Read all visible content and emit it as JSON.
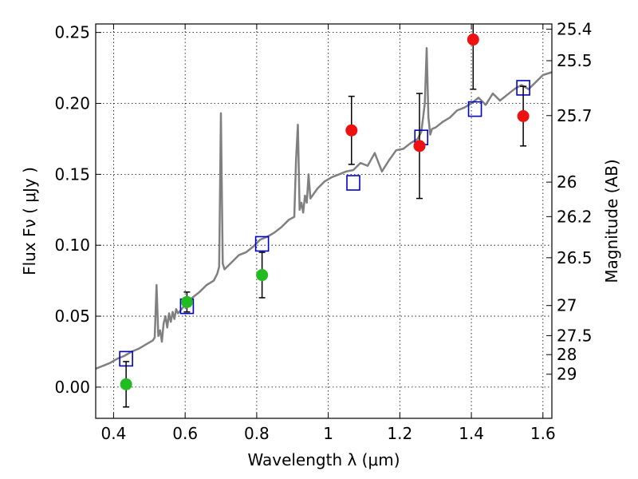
{
  "chart_data": {
    "type": "line",
    "xlabel": "Wavelength  λ (μm)",
    "ylabel": "Flux  Fν  ( μJy )",
    "ylabel_right": "Magnitude (AB)",
    "xlim": [
      0.35,
      1.625
    ],
    "ylim": [
      -0.022,
      0.256
    ],
    "grid": true,
    "x_ticks": [
      {
        "value": 0.4,
        "label": "0.4"
      },
      {
        "value": 0.6,
        "label": "0.6"
      },
      {
        "value": 0.8,
        "label": "0.8"
      },
      {
        "value": 1.0,
        "label": "1"
      },
      {
        "value": 1.2,
        "label": "1.2"
      },
      {
        "value": 1.4,
        "label": "1.4"
      },
      {
        "value": 1.6,
        "label": "1.6"
      }
    ],
    "y_ticks": [
      {
        "value": 0.0,
        "label": "0.00"
      },
      {
        "value": 0.05,
        "label": "0.05"
      },
      {
        "value": 0.1,
        "label": "0.10"
      },
      {
        "value": 0.15,
        "label": "0.15"
      },
      {
        "value": 0.2,
        "label": "0.20"
      },
      {
        "value": 0.25,
        "label": "0.25"
      }
    ],
    "right_ticks": [
      {
        "flux": 0.2523,
        "label": "25.4"
      },
      {
        "flux": 0.2301,
        "label": "25.5"
      },
      {
        "flux": 0.1914,
        "label": "25.7"
      },
      {
        "flux": 0.1445,
        "label": "26"
      },
      {
        "flux": 0.1202,
        "label": "26.2"
      },
      {
        "flux": 0.0912,
        "label": "26.5"
      },
      {
        "flux": 0.0575,
        "label": "27"
      },
      {
        "flux": 0.0363,
        "label": "27.5"
      },
      {
        "flux": 0.0229,
        "label": "28"
      },
      {
        "flux": 0.0091,
        "label": "29"
      }
    ],
    "colors": {
      "spectrum": "#808080",
      "model_squares": "#0000cc",
      "green_points": "#22bb22",
      "red_points": "#ee1111",
      "errorbars": "#000000"
    },
    "series": [
      {
        "type": "line",
        "x": [
          0.35,
          0.37,
          0.39,
          0.41,
          0.43,
          0.45,
          0.47,
          0.49,
          0.51,
          0.515,
          0.52,
          0.525,
          0.53,
          0.535,
          0.54,
          0.545,
          0.55,
          0.555,
          0.56,
          0.565,
          0.57,
          0.575,
          0.58,
          0.59,
          0.6,
          0.62,
          0.64,
          0.66,
          0.68,
          0.69,
          0.695,
          0.7,
          0.705,
          0.71,
          0.73,
          0.75,
          0.77,
          0.79,
          0.81,
          0.83,
          0.85,
          0.87,
          0.89,
          0.905,
          0.91,
          0.915,
          0.92,
          0.925,
          0.93,
          0.935,
          0.94,
          0.945,
          0.95,
          0.97,
          0.99,
          1.01,
          1.03,
          1.05,
          1.07,
          1.09,
          1.11,
          1.13,
          1.15,
          1.17,
          1.19,
          1.21,
          1.23,
          1.25,
          1.26,
          1.27,
          1.275,
          1.28,
          1.285,
          1.29,
          1.3,
          1.32,
          1.34,
          1.36,
          1.38,
          1.4,
          1.42,
          1.44,
          1.46,
          1.48,
          1.5,
          1.52,
          1.54,
          1.56,
          1.58,
          1.6,
          1.625
        ],
        "y": [
          0.013,
          0.015,
          0.017,
          0.02,
          0.022,
          0.025,
          0.027,
          0.03,
          0.033,
          0.035,
          0.072,
          0.036,
          0.04,
          0.032,
          0.045,
          0.05,
          0.042,
          0.052,
          0.046,
          0.053,
          0.048,
          0.055,
          0.052,
          0.055,
          0.058,
          0.063,
          0.067,
          0.072,
          0.075,
          0.08,
          0.085,
          0.193,
          0.087,
          0.083,
          0.088,
          0.093,
          0.095,
          0.099,
          0.104,
          0.106,
          0.109,
          0.113,
          0.118,
          0.12,
          0.16,
          0.185,
          0.125,
          0.13,
          0.123,
          0.135,
          0.13,
          0.15,
          0.133,
          0.14,
          0.145,
          0.148,
          0.15,
          0.152,
          0.153,
          0.158,
          0.156,
          0.165,
          0.152,
          0.16,
          0.167,
          0.168,
          0.172,
          0.175,
          0.18,
          0.2,
          0.239,
          0.19,
          0.178,
          0.182,
          0.183,
          0.187,
          0.19,
          0.195,
          0.197,
          0.2,
          0.204,
          0.199,
          0.207,
          0.202,
          0.206,
          0.21,
          0.213,
          0.21,
          0.215,
          0.22,
          0.222
        ]
      },
      {
        "type": "scatter",
        "marker": "open-square",
        "x": [
          0.435,
          0.605,
          0.815,
          1.07,
          1.26,
          1.41,
          1.545
        ],
        "y": [
          0.02,
          0.057,
          0.101,
          0.144,
          0.176,
          0.196,
          0.211
        ]
      },
      {
        "type": "scatter",
        "marker": "filled-circle",
        "x": [
          0.435,
          0.605,
          0.815
        ],
        "y": [
          0.002,
          0.06,
          0.079
        ],
        "yerr": [
          0.016,
          0.007,
          0.016
        ]
      },
      {
        "type": "scatter",
        "marker": "filled-circle",
        "x": [
          1.065,
          1.255,
          1.405,
          1.545
        ],
        "y": [
          0.181,
          0.17,
          0.245,
          0.191
        ],
        "yerr_low": [
          0.024,
          0.037,
          0.035,
          0.021
        ],
        "yerr_high": [
          0.024,
          0.037,
          0.02,
          0.021
        ]
      }
    ]
  }
}
